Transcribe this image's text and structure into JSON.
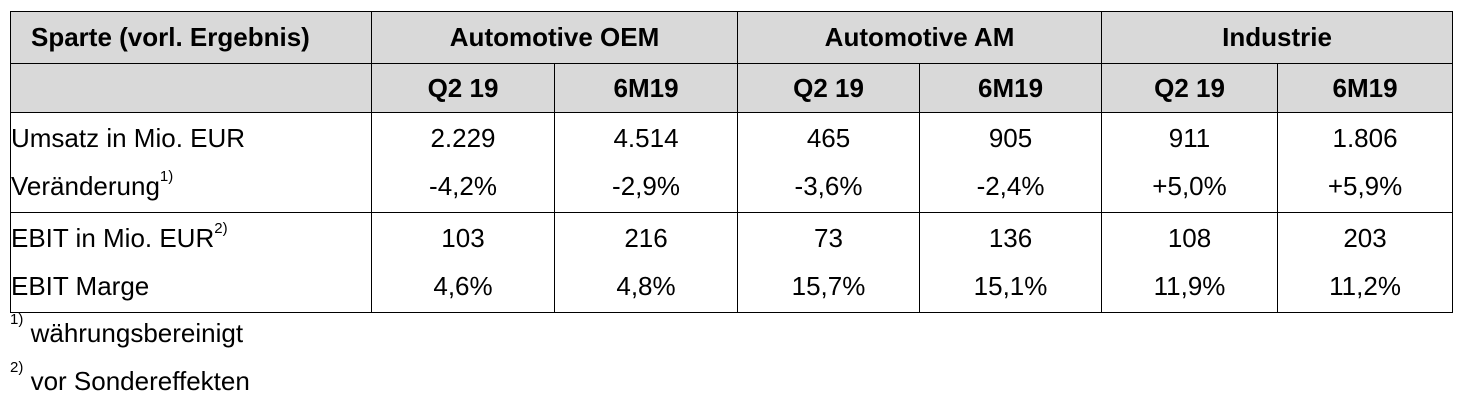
{
  "table": {
    "header_label": "Sparte (vorl. Ergebnis)",
    "segments": [
      "Automotive OEM",
      "Automotive AM",
      "Industrie"
    ],
    "periods": [
      "Q2 19",
      "6M19",
      "Q2 19",
      "6M19",
      "Q2 19",
      "6M19"
    ],
    "rows": [
      {
        "label1": "Umsatz in Mio. EUR",
        "label2": "Veränderung",
        "label2_sup": "1)",
        "values1": [
          "2.229",
          "4.514",
          "465",
          "905",
          "911",
          "1.806"
        ],
        "values2": [
          "-4,2%",
          "-2,9%",
          "-3,6%",
          "-2,4%",
          "+5,0%",
          "+5,9%"
        ]
      },
      {
        "label1": "EBIT in Mio. EUR",
        "label1_sup": "2)",
        "label2": "EBIT Marge",
        "values1": [
          "103",
          "216",
          "73",
          "136",
          "108",
          "203"
        ],
        "values2": [
          "4,6%",
          "4,8%",
          "15,7%",
          "15,1%",
          "11,9%",
          "11,2%"
        ]
      }
    ]
  },
  "footnotes": [
    {
      "marker": "1)",
      "text": "währungsbereinigt"
    },
    {
      "marker": "2)",
      "text": "vor Sondereffekten"
    }
  ]
}
